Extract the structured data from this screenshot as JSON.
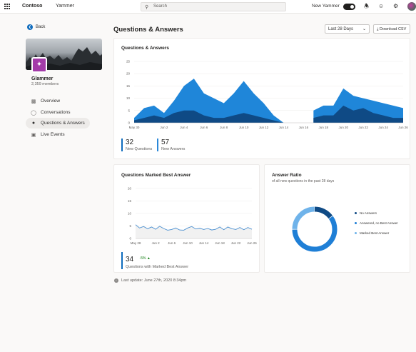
{
  "topbar": {
    "brand": "Contoso",
    "app": "Yammer",
    "search_placeholder": "Search",
    "new_yammer_label": "New Yammer"
  },
  "sidebar": {
    "back_label": "Back",
    "group_name": "Glammer",
    "group_members": "2,359 members",
    "items": [
      {
        "label": "Overview",
        "icon": "bar-chart-icon"
      },
      {
        "label": "Conversations",
        "icon": "chat-icon"
      },
      {
        "label": "Questions & Answers",
        "icon": "question-chat-icon",
        "active": true
      },
      {
        "label": "Live Events",
        "icon": "calendar-icon"
      }
    ]
  },
  "header": {
    "title": "Questions & Answers",
    "date_range": "Last 28 Days",
    "download_label": "Download CSV"
  },
  "qa_card": {
    "title": "Questions & Answers",
    "kpis": [
      {
        "value": "32",
        "label": "New Questions"
      },
      {
        "value": "57",
        "label": "New Answers"
      }
    ]
  },
  "best_card": {
    "title": "Questions Marked Best Answer",
    "kpi_value": "34",
    "kpi_delta": "-5%",
    "kpi_label": "Questions with Marked Best Answer"
  },
  "ratio_card": {
    "title": "Answer Ratio",
    "subtitle": "of all new questions in the past 28 days",
    "legend": [
      {
        "label": "No Answers",
        "color": "#0f4a85"
      },
      {
        "label": "Answered, no Best Answer",
        "color": "#1f7fd6"
      },
      {
        "label": "Marked Best Answer",
        "color": "#6fb3ea"
      }
    ]
  },
  "footer": {
    "last_update": "Last update: June 27th, 2020 8:34pm"
  },
  "colors": {
    "dark_area": "#0f4a85",
    "light_area": "#1f86d9",
    "line": "#4a8fd0",
    "accent": "#0f6cbd"
  },
  "chart_data": [
    {
      "type": "area",
      "categories": [
        "May 30",
        "May 31",
        "Jun 1",
        "Jun 2",
        "Jun 3",
        "Jun 4",
        "Jun 5",
        "Jun 6",
        "Jun 7",
        "Jun 8",
        "Jun 9",
        "Jun 10",
        "Jun 11",
        "Jun 12",
        "Jun 13",
        "Jun 14",
        "Jun 15",
        "Jun 16",
        "Jun 17",
        "Jun 18",
        "Jun 19",
        "Jun 20",
        "Jun 21",
        "Jun 22",
        "Jun 23",
        "Jun 24",
        "Jun 25",
        "Jun 26"
      ],
      "tick_labels": [
        "May 30",
        "Jun 2",
        "Jun 4",
        "Jun 6",
        "Jun 8",
        "Jun 10",
        "Jun 12",
        "Jun 14",
        "Jun 16",
        "Jun 18",
        "Jun 20",
        "Jun 22",
        "Jun 24",
        "Jun 26"
      ],
      "series": [
        {
          "values": [
            2,
            6,
            7,
            4,
            9,
            15,
            18,
            12,
            10,
            8,
            12,
            17,
            12,
            8,
            3,
            0,
            null,
            null,
            5,
            7,
            7,
            14,
            11,
            10,
            9,
            8,
            7,
            6
          ],
          "color": "#1f86d9"
        },
        {
          "values": [
            1,
            2,
            3,
            2,
            4,
            5,
            5,
            3,
            2,
            2,
            3,
            4,
            3,
            2,
            1,
            0,
            null,
            null,
            2,
            3,
            3,
            7,
            5,
            6,
            4,
            3,
            2,
            2
          ],
          "color": "#0f4a85"
        }
      ],
      "ylim": [
        0,
        25
      ],
      "yticks": [
        0,
        5,
        10,
        15,
        20,
        25
      ]
    },
    {
      "type": "line",
      "categories": [
        "May 28",
        "May 29",
        "May 30",
        "May 31",
        "Jun 1",
        "Jun 2",
        "Jun 3",
        "Jun 4",
        "Jun 5",
        "Jun 6",
        "Jun 7",
        "Jun 8",
        "Jun 9",
        "Jun 10",
        "Jun 11",
        "Jun 12",
        "Jun 13",
        "Jun 14",
        "Jun 15",
        "Jun 16",
        "Jun 17",
        "Jun 18",
        "Jun 19",
        "Jun 20",
        "Jun 21",
        "Jun 22",
        "Jun 23",
        "Jun 24",
        "Jun 25",
        "Jun 26"
      ],
      "tick_labels": [
        "May 28",
        "Jun 2",
        "Jun 6",
        "Jun 10",
        "Jun 14",
        "Jun 18",
        "Jun 22",
        "Jun 26"
      ],
      "series": [
        {
          "values": [
            5.5,
            4.2,
            4.8,
            3.9,
            4.6,
            3.7,
            4.9,
            4.0,
            3.3,
            3.6,
            4.2,
            3.4,
            3.3,
            4.2,
            4.8,
            3.8,
            4.1,
            3.6,
            4.0,
            3.4,
            3.7,
            4.6,
            3.5,
            4.6,
            3.9,
            3.6,
            4.4,
            3.5,
            4.4,
            3.7
          ],
          "color": "#4a8fd0"
        }
      ],
      "ylim": [
        0,
        20
      ],
      "yticks": [
        0,
        5,
        10,
        15,
        20
      ]
    },
    {
      "type": "pie",
      "categories": [
        "No Answers",
        "Answered, no Best Answer",
        "Marked Best Answer"
      ],
      "values": [
        15,
        60,
        25
      ],
      "colors": [
        "#0f4a85",
        "#1f7fd6",
        "#6fb3ea"
      ]
    }
  ]
}
